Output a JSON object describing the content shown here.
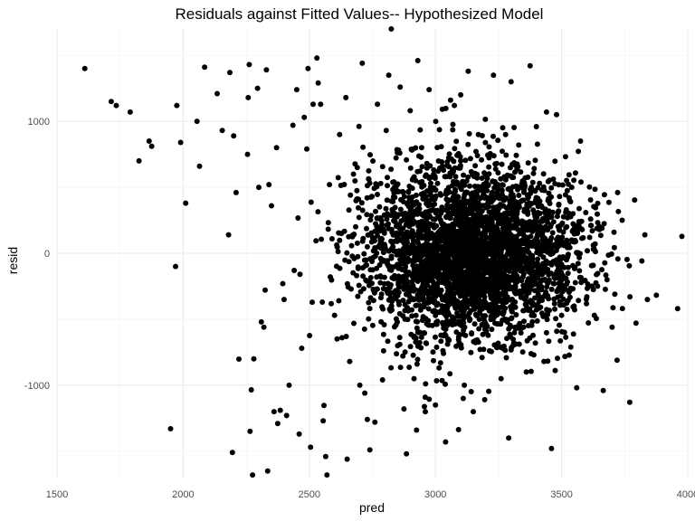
{
  "chart_data": {
    "type": "scatter",
    "title": "Residuals against Fitted Values-- Hypothesized Model",
    "xlabel": "pred",
    "ylabel": "resid",
    "xlim": [
      1500,
      4000
    ],
    "ylim": [
      -1700,
      1700
    ],
    "x_ticks": [
      1500,
      2000,
      2500,
      3000,
      3500,
      4000
    ],
    "x_tick_labels": [
      "1500",
      "2000",
      "2500",
      "3000",
      "3500",
      "4000"
    ],
    "y_ticks": [
      -1000,
      0,
      1000
    ],
    "y_tick_labels": [
      "-1000",
      "0",
      "1000"
    ],
    "grid": true,
    "legend": "none",
    "point_color": "#000000",
    "panel_background": "#ffffff",
    "grid_color": "#ebebeb",
    "points": [
      [
        1610,
        1400
      ],
      [
        1715,
        1150
      ],
      [
        1735,
        1120
      ],
      [
        1790,
        1070
      ],
      [
        1825,
        700
      ],
      [
        1865,
        850
      ],
      [
        1875,
        810
      ],
      [
        1950,
        -1330
      ],
      [
        1970,
        -100
      ],
      [
        1975,
        1120
      ],
      [
        1990,
        840
      ],
      [
        2010,
        380
      ],
      [
        2055,
        1000
      ],
      [
        2065,
        660
      ],
      [
        2085,
        1410
      ],
      [
        2135,
        1210
      ],
      [
        2155,
        930
      ],
      [
        2180,
        140
      ],
      [
        2185,
        1370
      ],
      [
        2195,
        -1510
      ],
      [
        2200,
        890
      ],
      [
        2210,
        460
      ],
      [
        2255,
        750
      ],
      [
        2258,
        1180
      ],
      [
        2262,
        1430
      ],
      [
        2265,
        -1350
      ],
      [
        2270,
        -1035
      ],
      [
        2275,
        -1680
      ],
      [
        2280,
        -800
      ],
      [
        2295,
        1250
      ],
      [
        2300,
        500
      ],
      [
        2310,
        -520
      ],
      [
        2320,
        -560
      ],
      [
        2325,
        -280
      ],
      [
        2330,
        1390
      ],
      [
        2335,
        -1650
      ],
      [
        2340,
        520
      ],
      [
        2350,
        360
      ],
      [
        2360,
        -1200
      ],
      [
        2370,
        800
      ],
      [
        2375,
        -1290
      ],
      [
        2385,
        -1190
      ],
      [
        2395,
        -230
      ],
      [
        2400,
        -350
      ],
      [
        2410,
        -1230
      ],
      [
        2420,
        -1000
      ],
      [
        2435,
        970
      ],
      [
        2440,
        -130
      ],
      [
        2450,
        1240
      ],
      [
        2460,
        -1370
      ],
      [
        2470,
        -720
      ],
      [
        2480,
        1030
      ],
      [
        2490,
        790
      ],
      [
        2495,
        1400
      ],
      [
        2505,
        -1470
      ],
      [
        2515,
        1130
      ],
      [
        2530,
        1480
      ],
      [
        2535,
        1290
      ],
      [
        2545,
        1130
      ],
      [
        2555,
        -1270
      ],
      [
        2565,
        -1540
      ],
      [
        2570,
        -1680
      ],
      [
        2580,
        520
      ],
      [
        2590,
        110
      ],
      [
        2600,
        -470
      ],
      [
        2610,
        -650
      ],
      [
        2620,
        900
      ],
      [
        2630,
        -640
      ],
      [
        2645,
        1180
      ],
      [
        2650,
        -1560
      ],
      [
        2660,
        -820
      ],
      [
        2675,
        600
      ],
      [
        2690,
        650
      ],
      [
        2700,
        -1000
      ],
      [
        2710,
        1440
      ],
      [
        2720,
        -1060
      ],
      [
        2730,
        -1260
      ],
      [
        2740,
        -1490
      ],
      [
        2760,
        -1280
      ],
      [
        2770,
        1130
      ],
      [
        2790,
        -960
      ],
      [
        2805,
        930
      ],
      [
        2815,
        1350
      ],
      [
        2825,
        1700
      ],
      [
        2850,
        -700
      ],
      [
        2860,
        1260
      ],
      [
        2875,
        -1180
      ],
      [
        2885,
        -1520
      ],
      [
        2900,
        1080
      ],
      [
        2915,
        -950
      ],
      [
        2925,
        -1340
      ],
      [
        2930,
        1460
      ],
      [
        2945,
        800
      ],
      [
        2960,
        -1200
      ],
      [
        2975,
        1240
      ],
      [
        3000,
        -1150
      ],
      [
        3020,
        -830
      ],
      [
        3040,
        -1430
      ],
      [
        3060,
        1160
      ],
      [
        3075,
        1120
      ],
      [
        3100,
        1200
      ],
      [
        3110,
        -1100
      ],
      [
        3130,
        1380
      ],
      [
        3150,
        -1200
      ],
      [
        3170,
        900
      ],
      [
        3195,
        -1110
      ],
      [
        3230,
        1350
      ],
      [
        3260,
        -950
      ],
      [
        3290,
        -1400
      ],
      [
        3300,
        1300
      ],
      [
        3330,
        820
      ],
      [
        3360,
        -900
      ],
      [
        3375,
        1420
      ],
      [
        3400,
        960
      ],
      [
        3430,
        -820
      ],
      [
        3440,
        1070
      ],
      [
        3460,
        -1480
      ],
      [
        3480,
        1050
      ],
      [
        3500,
        -470
      ],
      [
        3520,
        200
      ],
      [
        3540,
        500
      ],
      [
        3560,
        -1020
      ],
      [
        3575,
        850
      ],
      [
        3600,
        -330
      ],
      [
        3615,
        260
      ],
      [
        3630,
        -470
      ],
      [
        3650,
        180
      ],
      [
        3665,
        -1040
      ],
      [
        3680,
        -200
      ],
      [
        3700,
        -560
      ],
      [
        3720,
        -810
      ],
      [
        3740,
        250
      ],
      [
        3770,
        -1130
      ],
      [
        3795,
        -530
      ],
      [
        3830,
        140
      ],
      [
        3840,
        -350
      ],
      [
        3960,
        -420
      ]
    ],
    "cloud_center": [
      3140,
      0
    ],
    "cloud_spread": [
      215,
      330
    ],
    "cloud_count": 3400
  }
}
